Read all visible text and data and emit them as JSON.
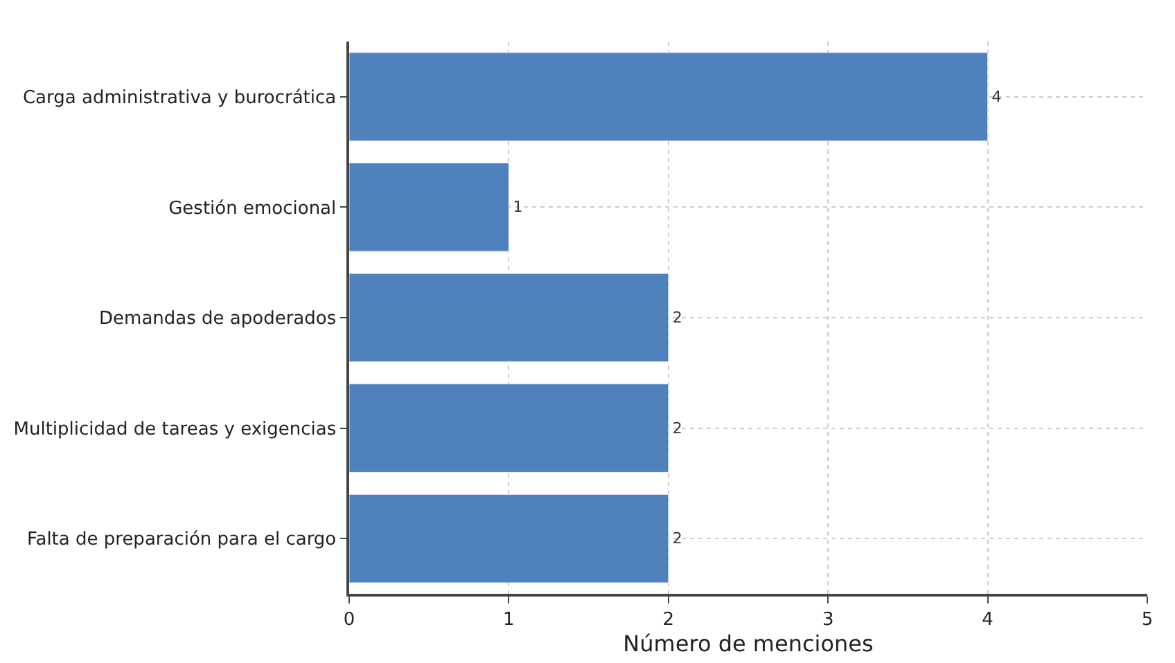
{
  "chart_data": {
    "type": "bar",
    "orientation": "horizontal",
    "xlabel": "Número de menciones",
    "categories": [
      "Carga administrativa y burocrática",
      "Gestión emocional",
      "Demandas de apoderados",
      "Multiplicidad de tareas y exigencias",
      "Falta de preparación para el cargo"
    ],
    "values": [
      4,
      1,
      2,
      2,
      2
    ],
    "color": "#4f81bd",
    "data_labels": true,
    "xlim": [
      0,
      5
    ],
    "xticks": [
      0,
      1,
      2,
      3,
      4,
      5
    ],
    "grid": true
  }
}
